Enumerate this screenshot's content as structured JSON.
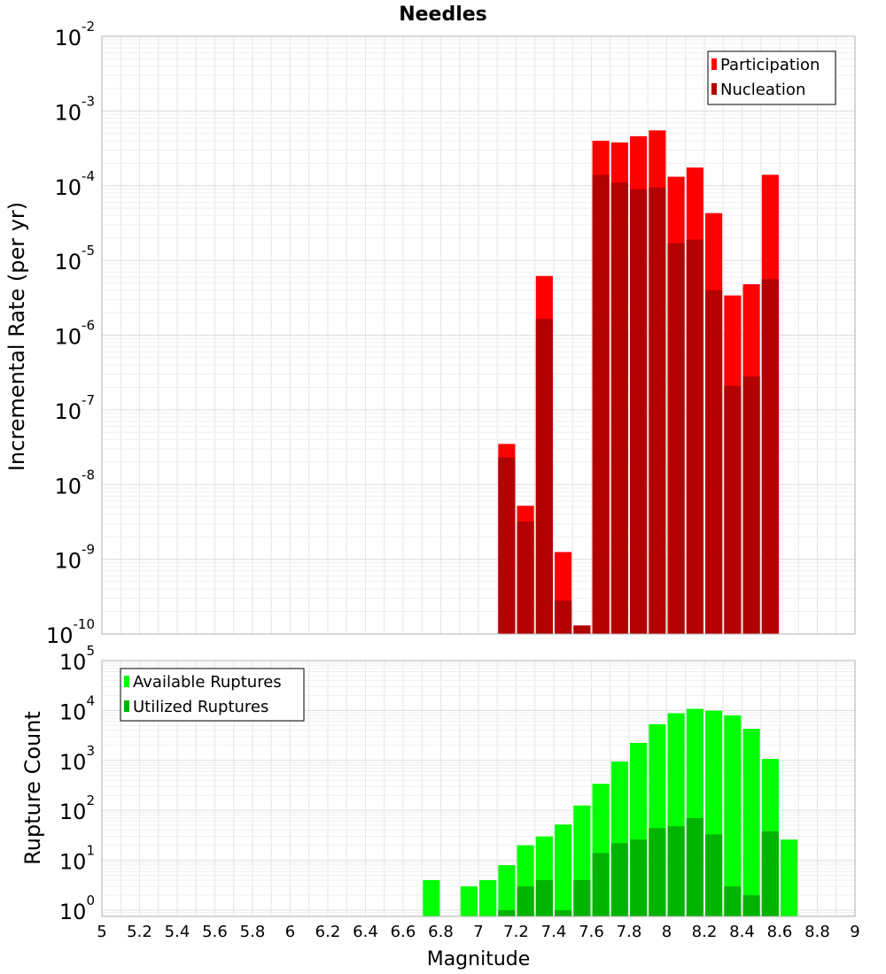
{
  "chart_data": [
    {
      "type": "bar",
      "title": "Needles",
      "xlabel": "",
      "ylabel": "Incremental Rate (per yr)",
      "yscale": "log",
      "ylim": [
        1e-10,
        0.01
      ],
      "xlim": [
        5,
        9
      ],
      "grid": true,
      "legend_position": "top-right",
      "x": [
        7.15,
        7.25,
        7.35,
        7.45,
        7.55,
        7.65,
        7.75,
        7.85,
        7.95,
        8.05,
        8.15,
        8.25,
        8.35,
        8.45,
        8.55
      ],
      "series": [
        {
          "name": "Participation",
          "color": "#ff0000",
          "values": [
            3.5e-08,
            5.2e-09,
            6.2e-06,
            1.25e-09,
            1.3e-10,
            0.0004,
            0.00038,
            0.00046,
            0.00055,
            0.000132,
            0.000175,
            4.3e-05,
            3.4e-06,
            4.8e-06,
            0.00014
          ]
        },
        {
          "name": "Nucleation",
          "color": "#b30000",
          "values": [
            2.3e-08,
            3.2e-09,
            1.65e-06,
            2.8e-10,
            1.3e-10,
            0.00014,
            0.00011,
            9e-05,
            9.5e-05,
            1.7e-05,
            1.9e-05,
            4e-06,
            2.1e-07,
            2.8e-07,
            5.6e-06
          ]
        }
      ]
    },
    {
      "type": "bar",
      "title": "",
      "xlabel": "Magnitude",
      "ylabel": "Rupture Count",
      "yscale": "log",
      "ylim": [
        0.75,
        100000
      ],
      "xlim": [
        5,
        9
      ],
      "grid": true,
      "legend_position": "top-left",
      "x": [
        6.75,
        6.85,
        6.95,
        7.05,
        7.15,
        7.25,
        7.35,
        7.45,
        7.55,
        7.65,
        7.75,
        7.85,
        7.95,
        8.05,
        8.15,
        8.25,
        8.35,
        8.45,
        8.55,
        8.65
      ],
      "series": [
        {
          "name": "Available Ruptures",
          "color": "#00ff00",
          "values": [
            4,
            0,
            3,
            4,
            8,
            20,
            30,
            52,
            125,
            340,
            950,
            2250,
            5300,
            8800,
            10800,
            9900,
            8000,
            4300,
            1070,
            26
          ]
        },
        {
          "name": "Utilized Ruptures",
          "color": "#00b300",
          "values": [
            0,
            0,
            0,
            0,
            1,
            3,
            4,
            1,
            4,
            14,
            22,
            26,
            44,
            48,
            70,
            33,
            3,
            2,
            38,
            0
          ]
        }
      ]
    }
  ],
  "x_ticks": [
    {
      "v": 5,
      "l": "5"
    },
    {
      "v": 5.2,
      "l": "5.2"
    },
    {
      "v": 5.4,
      "l": "5.4"
    },
    {
      "v": 5.6,
      "l": "5.6"
    },
    {
      "v": 5.8,
      "l": "5.8"
    },
    {
      "v": 6,
      "l": "6"
    },
    {
      "v": 6.2,
      "l": "6.2"
    },
    {
      "v": 6.4,
      "l": "6.4"
    },
    {
      "v": 6.6,
      "l": "6.6"
    },
    {
      "v": 6.8,
      "l": "6.8"
    },
    {
      "v": 7,
      "l": "7"
    },
    {
      "v": 7.2,
      "l": "7.2"
    },
    {
      "v": 7.4,
      "l": "7.4"
    },
    {
      "v": 7.6,
      "l": "7.6"
    },
    {
      "v": 7.8,
      "l": "7.8"
    },
    {
      "v": 8,
      "l": "8"
    },
    {
      "v": 8.2,
      "l": "8.2"
    },
    {
      "v": 8.4,
      "l": "8.4"
    },
    {
      "v": 8.6,
      "l": "8.6"
    },
    {
      "v": 8.8,
      "l": "8.8"
    },
    {
      "v": 9,
      "l": "9"
    }
  ],
  "top_y_ticks": [
    {
      "v": 1e-10,
      "base": "10",
      "exp": "-10"
    },
    {
      "v": 1e-09,
      "base": "10",
      "exp": "-9"
    },
    {
      "v": 1e-08,
      "base": "10",
      "exp": "-8"
    },
    {
      "v": 1e-07,
      "base": "10",
      "exp": "-7"
    },
    {
      "v": 1e-06,
      "base": "10",
      "exp": "-6"
    },
    {
      "v": 1e-05,
      "base": "10",
      "exp": "-5"
    },
    {
      "v": 0.0001,
      "base": "10",
      "exp": "-4"
    },
    {
      "v": 0.001,
      "base": "10",
      "exp": "-3"
    },
    {
      "v": 0.01,
      "base": "10",
      "exp": "-2"
    }
  ],
  "bottom_y_ticks": [
    {
      "v": 1,
      "base": "10",
      "exp": "0"
    },
    {
      "v": 10,
      "base": "10",
      "exp": "1"
    },
    {
      "v": 100,
      "base": "10",
      "exp": "2"
    },
    {
      "v": 1000,
      "base": "10",
      "exp": "3"
    },
    {
      "v": 10000,
      "base": "10",
      "exp": "4"
    },
    {
      "v": 100000,
      "base": "10",
      "exp": "5"
    }
  ]
}
